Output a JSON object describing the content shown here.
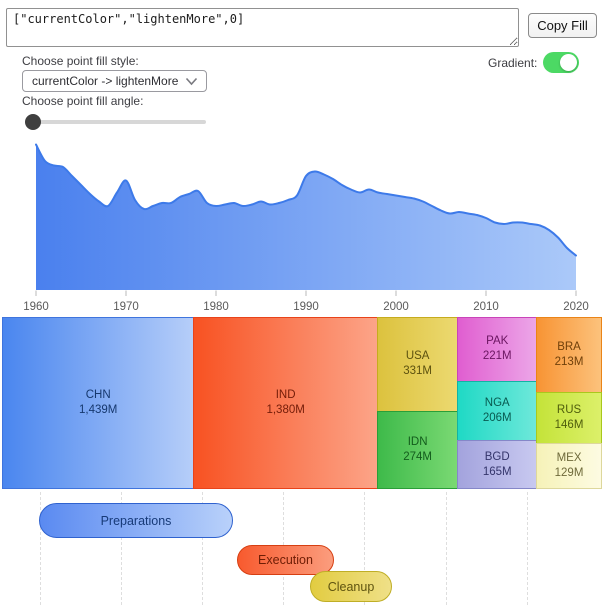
{
  "fill_editor": {
    "value": "[\"currentColor\",\"lightenMore\",0]",
    "copy_button_label": "Copy Fill"
  },
  "controls": {
    "style_label": "Choose point fill style:",
    "style_value": "currentColor -> lightenMore",
    "angle_label": "Choose point fill angle:",
    "angle_slider_value": 0,
    "gradient_label": "Gradient:",
    "gradient_enabled": true,
    "toggle_on_color": "#4cd964",
    "slider_thumb_color": "#3f3f3f"
  },
  "chart_data": [
    {
      "type": "area",
      "title": "",
      "xlabel": "",
      "ylabel": "",
      "y_unit": "relative height, no y-axis shown (0-100)",
      "x_range": [
        1960,
        2020
      ],
      "xticks": [
        1960,
        1970,
        1980,
        1990,
        2000,
        2010,
        2020
      ],
      "x": [
        1960,
        1961,
        1962,
        1963,
        1964,
        1965,
        1966,
        1967,
        1968,
        1969,
        1970,
        1971,
        1972,
        1973,
        1974,
        1975,
        1976,
        1977,
        1978,
        1979,
        1980,
        1981,
        1982,
        1983,
        1984,
        1985,
        1986,
        1987,
        1988,
        1989,
        1990,
        1991,
        1992,
        1993,
        1994,
        1995,
        1996,
        1997,
        1998,
        1999,
        2000,
        2001,
        2002,
        2003,
        2004,
        2005,
        2006,
        2007,
        2008,
        2009,
        2010,
        2011,
        2012,
        2013,
        2014,
        2015,
        2016,
        2017,
        2018,
        2019,
        2020
      ],
      "values": [
        97,
        86,
        83,
        82,
        76,
        70,
        64,
        59,
        56,
        65,
        73,
        60,
        54,
        56,
        58,
        58,
        62,
        64,
        66,
        58,
        56,
        57,
        58,
        56,
        57,
        59,
        57,
        58,
        60,
        63,
        76,
        79,
        77,
        74,
        70,
        67,
        65,
        67,
        65,
        64,
        63,
        62,
        61,
        59,
        56,
        53,
        51,
        52,
        51,
        50,
        48,
        45,
        44,
        45,
        45,
        44,
        43,
        40,
        35,
        28,
        23
      ],
      "grid": false,
      "legend": false,
      "fill_gradient": [
        "#4a80ee",
        "#abc9f9"
      ],
      "line_color": "#3d7ae9",
      "tick_color": "#b9b9b9",
      "tick_label_color": "#5a5a5a"
    },
    {
      "type": "treemap",
      "cells": [
        {
          "code": "CHN",
          "label": "1,439M",
          "value": 1439,
          "c1": "#4a86ef",
          "c2": "#b6cef9",
          "border": "#3f74dd",
          "text": "#16386e"
        },
        {
          "code": "IND",
          "label": "1,380M",
          "value": 1380,
          "c1": "#f85222",
          "c2": "#fca488",
          "border": "#e8431a",
          "text": "#731c08"
        },
        {
          "code": "USA",
          "label": "331M",
          "value": 331,
          "c1": "#dcc23e",
          "c2": "#ecd970",
          "border": "#c6ab1e",
          "text": "#5c510f"
        },
        {
          "code": "IDN",
          "label": "274M",
          "value": 274,
          "c1": "#3eba4a",
          "c2": "#7ad973",
          "border": "#2a9e38",
          "text": "#135c1c"
        },
        {
          "code": "PAK",
          "label": "221M",
          "value": 221,
          "c1": "#e05ed0",
          "c2": "#eca6e8",
          "border": "#c944b8",
          "text": "#6a1560"
        },
        {
          "code": "NGA",
          "label": "206M",
          "value": 206,
          "c1": "#1fd9c5",
          "c2": "#6ee8da",
          "border": "#12b3a3",
          "text": "#085a50"
        },
        {
          "code": "BGD",
          "label": "165M",
          "value": 165,
          "c1": "#a3a3dd",
          "c2": "#c8c9f0",
          "border": "#8587c8",
          "text": "#34356b"
        },
        {
          "code": "BRA",
          "label": "213M",
          "value": 213,
          "c1": "#f89434",
          "c2": "#fcc27c",
          "border": "#ea8418",
          "text": "#70400a"
        },
        {
          "code": "RUS",
          "label": "146M",
          "value": 146,
          "c1": "#c4e339",
          "c2": "#dcf06a",
          "border": "#a9c81c",
          "text": "#4f5e0c"
        },
        {
          "code": "MEX",
          "label": "129M",
          "value": 129,
          "c1": "#f6f2b8",
          "c2": "#fdfbe2",
          "border": "#ddd79c",
          "text": "#6f6a3a"
        }
      ]
    },
    {
      "type": "timeline",
      "bars": [
        {
          "label": "Preparations",
          "c1": "#5a8af1",
          "c2": "#b9d1fa",
          "border": "#2f62cf",
          "text": "#173a78"
        },
        {
          "label": "Execution",
          "c1": "#f85a2e",
          "c2": "#fb9d7e",
          "border": "#d63f12",
          "text": "#6e1d05"
        },
        {
          "label": "Cleanup",
          "c1": "#e2cc41",
          "c2": "#efe088",
          "border": "#bfae26",
          "text": "#5f5410"
        }
      ]
    }
  ]
}
